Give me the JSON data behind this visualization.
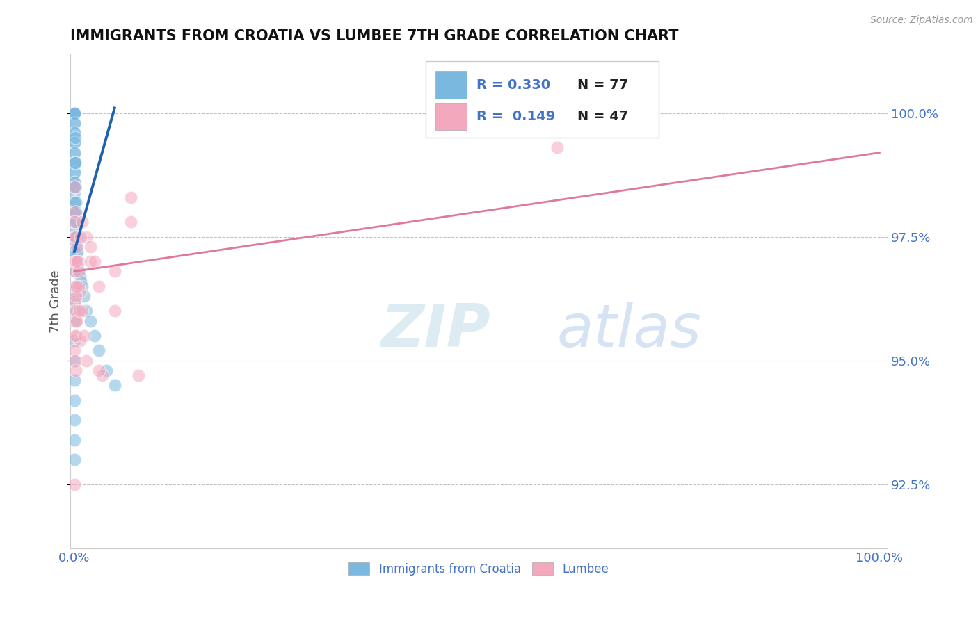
{
  "title": "IMMIGRANTS FROM CROATIA VS LUMBEE 7TH GRADE CORRELATION CHART",
  "source": "Source: ZipAtlas.com",
  "ylabel": "7th Grade",
  "y_min": 91.2,
  "y_max": 101.2,
  "x_min": -0.5,
  "x_max": 101,
  "legend_blue_r": "R = 0.330",
  "legend_blue_n": "N = 77",
  "legend_pink_r": "R = 0.149",
  "legend_pink_n": "N = 47",
  "blue_color": "#7ab8e0",
  "pink_color": "#f4a8be",
  "blue_line_color": "#2060b0",
  "pink_line_color": "#e07898",
  "background_color": "#ffffff",
  "grid_color": "#bbbbbb",
  "axis_label_color": "#4472c4",
  "title_color": "#111111",
  "blue_scatter_x": [
    0.02,
    0.02,
    0.02,
    0.02,
    0.02,
    0.02,
    0.02,
    0.02,
    0.02,
    0.02,
    0.02,
    0.02,
    0.02,
    0.02,
    0.05,
    0.05,
    0.05,
    0.05,
    0.05,
    0.05,
    0.05,
    0.05,
    0.05,
    0.05,
    0.05,
    0.05,
    0.07,
    0.07,
    0.07,
    0.07,
    0.07,
    0.1,
    0.1,
    0.1,
    0.1,
    0.1,
    0.12,
    0.12,
    0.12,
    0.15,
    0.15,
    0.15,
    0.18,
    0.18,
    0.2,
    0.2,
    0.25,
    0.3,
    0.3,
    0.35,
    0.4,
    0.5,
    0.6,
    0.7,
    0.8,
    1.0,
    1.2,
    1.5,
    2.0,
    2.5,
    3.0,
    4.0,
    5.0,
    0.02,
    0.02,
    0.02,
    0.02,
    0.02,
    0.02,
    0.02,
    0.02,
    0.02,
    0.05,
    0.05,
    0.05,
    0.07,
    0.1
  ],
  "blue_scatter_y": [
    100.0,
    100.0,
    100.0,
    100.0,
    100.0,
    99.8,
    99.6,
    99.4,
    99.2,
    99.0,
    98.8,
    98.6,
    98.4,
    98.2,
    100.0,
    99.8,
    99.6,
    99.4,
    99.2,
    99.0,
    98.8,
    98.6,
    98.2,
    97.8,
    97.5,
    97.2,
    99.5,
    99.0,
    98.5,
    98.0,
    97.6,
    99.0,
    98.5,
    98.0,
    97.5,
    97.2,
    98.5,
    98.0,
    97.5,
    98.2,
    97.8,
    97.4,
    98.0,
    97.5,
    97.8,
    97.4,
    97.5,
    97.5,
    97.2,
    97.3,
    97.2,
    97.0,
    96.8,
    96.7,
    96.6,
    96.5,
    96.3,
    96.0,
    95.8,
    95.5,
    95.2,
    94.8,
    94.5,
    96.2,
    95.8,
    95.4,
    95.0,
    94.6,
    94.2,
    93.8,
    93.4,
    93.0,
    97.2,
    96.8,
    96.4,
    96.5,
    96.0
  ],
  "pink_scatter_x": [
    0.02,
    0.02,
    0.05,
    0.05,
    0.07,
    0.1,
    0.12,
    0.15,
    0.2,
    0.25,
    0.3,
    0.4,
    0.5,
    0.7,
    1.0,
    1.5,
    2.0,
    3.0,
    5.0,
    0.05,
    0.1,
    0.2,
    0.5,
    1.0,
    2.0,
    5.0,
    0.15,
    0.3,
    0.7,
    1.5,
    3.5,
    7.0,
    0.02,
    0.07,
    0.15,
    0.35,
    0.8,
    2.5,
    7.0,
    0.05,
    0.12,
    0.25,
    0.6,
    1.2,
    3.0,
    8.0,
    60.0
  ],
  "pink_scatter_y": [
    98.0,
    97.5,
    97.8,
    97.0,
    96.8,
    96.5,
    96.2,
    96.0,
    95.8,
    95.5,
    97.3,
    97.0,
    96.8,
    96.4,
    96.0,
    97.5,
    97.0,
    96.5,
    96.0,
    98.5,
    97.5,
    97.0,
    96.5,
    97.8,
    97.3,
    96.8,
    96.3,
    95.8,
    95.4,
    95.0,
    94.7,
    98.3,
    95.2,
    95.0,
    94.8,
    97.0,
    97.5,
    97.0,
    97.8,
    92.5,
    95.5,
    96.5,
    96.0,
    95.5,
    94.8,
    94.7,
    99.3
  ],
  "blue_trend_x": [
    0.0,
    5.0
  ],
  "blue_trend_y": [
    97.2,
    100.1
  ],
  "pink_trend_x": [
    0.0,
    100.0
  ],
  "pink_trend_y": [
    96.8,
    99.2
  ],
  "bottom_legend_blue": "Immigrants from Croatia",
  "bottom_legend_pink": "Lumbee",
  "figsize": [
    14.06,
    8.92
  ],
  "dpi": 100
}
